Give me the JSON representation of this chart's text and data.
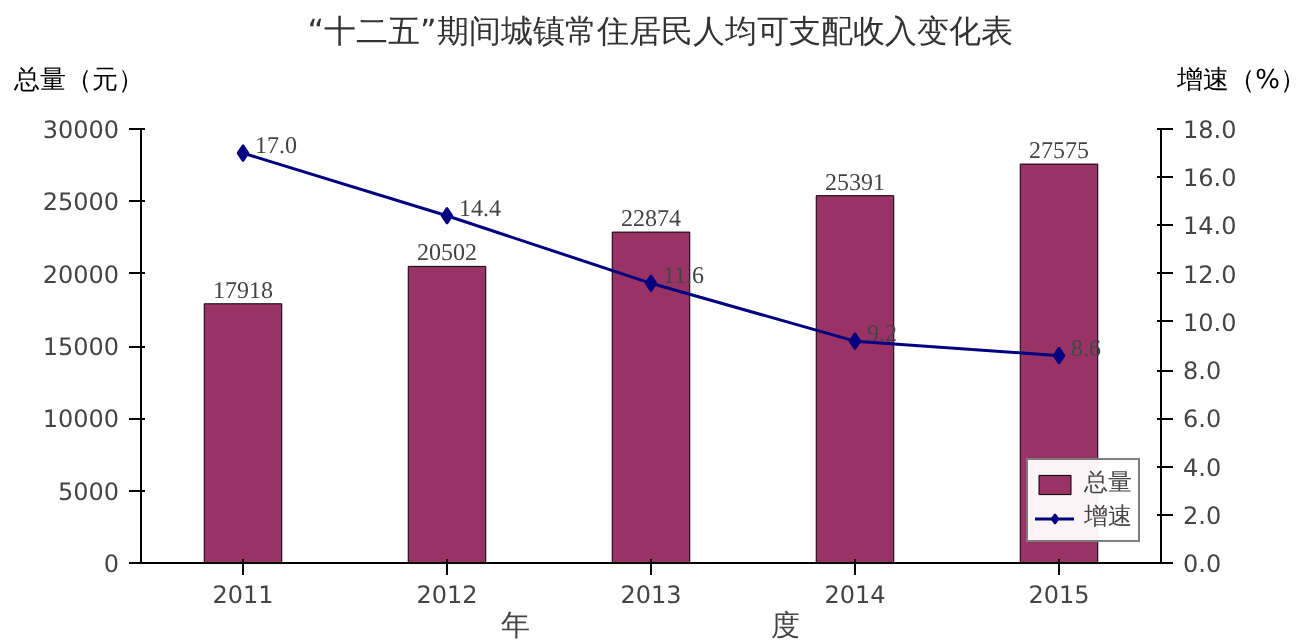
{
  "chart_data": {
    "type": "bar",
    "title": "“十二五”期间城镇常住居民人均可支配收入变化表",
    "ylabel": "总量（元）",
    "y2label": "增速（%）",
    "xlabel": "年　　　　　　　　度",
    "categories": [
      "2011",
      "2012",
      "2013",
      "2014",
      "2015"
    ],
    "series": [
      {
        "name": "总量",
        "color": "#993366",
        "values": [
          17918,
          20502,
          22874,
          25391,
          27575
        ],
        "value_labels": [
          "17918",
          "20502",
          "22874",
          "25391",
          "27575"
        ]
      },
      {
        "name": "增速",
        "type": "line",
        "axis": "y2",
        "color": "#000080",
        "marker": "diamond",
        "values": [
          17.0,
          14.4,
          11.6,
          9.2,
          8.6
        ],
        "value_labels": [
          "17.0",
          "14.4",
          "11.6",
          "9.2",
          "8.6"
        ]
      }
    ],
    "ylim": [
      0,
      30000
    ],
    "yticks": [
      0,
      5000,
      10000,
      15000,
      20000,
      25000,
      30000
    ],
    "y2lim": [
      0,
      18
    ],
    "y2ticks": [
      {
        "value": 0,
        "label": "0.0"
      },
      {
        "value": 2,
        "label": "2.0"
      },
      {
        "value": 4,
        "label": "4.0"
      },
      {
        "value": 6,
        "label": "6.0"
      },
      {
        "value": 8,
        "label": "8.0"
      },
      {
        "value": 10,
        "label": "10.0"
      },
      {
        "value": 12,
        "label": "12.0"
      },
      {
        "value": 14,
        "label": "14.0"
      },
      {
        "value": 16,
        "label": "16.0"
      },
      {
        "value": 18,
        "label": "18.0"
      }
    ],
    "legend": "bottom right",
    "grid": false
  }
}
